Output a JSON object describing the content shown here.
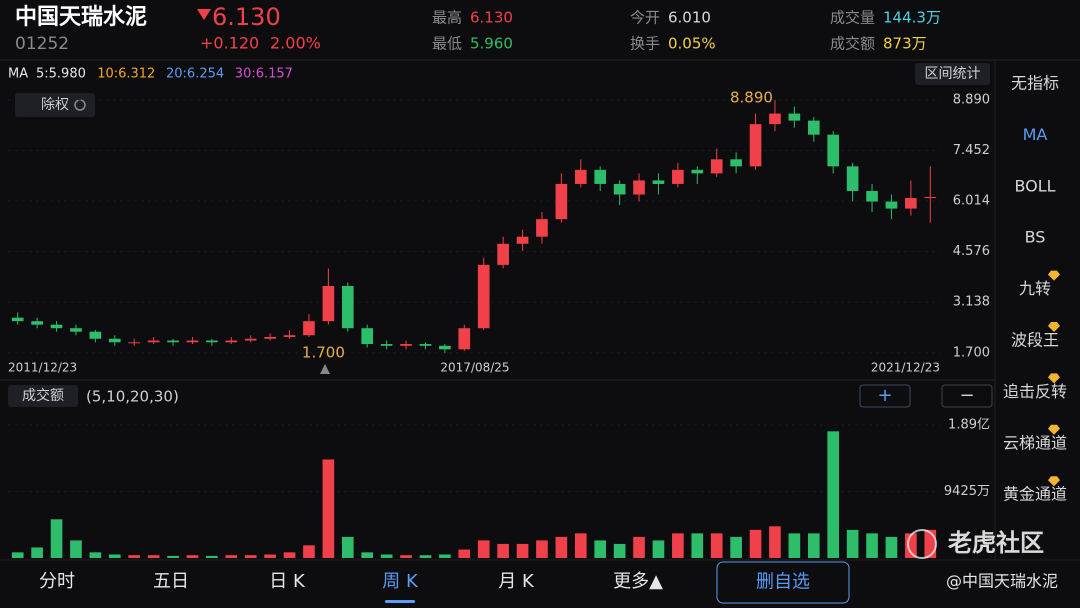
{
  "header": {
    "name": "中国天瑞水泥",
    "code": "01252",
    "price": "6.130",
    "change": "+0.120",
    "change_pct": "2.00%",
    "price_color": "#f0414a",
    "stats": [
      {
        "label": "最高",
        "value": "6.130",
        "color": "#f0414a"
      },
      {
        "label": "最低",
        "value": "5.960",
        "color": "#2ebd6b"
      },
      {
        "label": "今开",
        "value": "6.010",
        "color": "#d8d8d8"
      },
      {
        "label": "换手",
        "value": "0.05%",
        "color": "#f2d14a"
      },
      {
        "label": "成交量",
        "value": "144.3万",
        "color": "#4fd3e0"
      },
      {
        "label": "成交额",
        "value": "873万",
        "color": "#f2d14a"
      }
    ]
  },
  "ma_legend": {
    "label": "MA",
    "items": [
      {
        "text": "5:5.980",
        "color": "#e6e6e6"
      },
      {
        "text": "10:6.312",
        "color": "#f5a623"
      },
      {
        "text": "20:6.254",
        "color": "#5b9cf5"
      },
      {
        "text": "30:6.157",
        "color": "#d94fd0"
      }
    ]
  },
  "buttons": {
    "range_stats": "区间统计",
    "adjust": "除权",
    "volume_selector": "成交额",
    "volume_params": "(5,10,20,30)",
    "plus": "+",
    "minus": "−"
  },
  "chart_data": [
    {
      "type": "candlestick",
      "up_color": "#f0414a",
      "down_color": "#2ebd6b",
      "open": [
        2.7,
        2.6,
        2.5,
        2.4,
        2.3,
        2.1,
        1.98,
        2.0,
        2.05,
        2.0,
        2.05,
        2.0,
        2.05,
        2.1,
        2.15,
        2.2,
        2.6,
        3.6,
        2.4,
        1.95,
        1.9,
        1.95,
        1.9,
        1.8,
        2.4,
        4.2,
        4.8,
        5.0,
        5.5,
        6.5,
        6.9,
        6.5,
        6.2,
        6.6,
        6.5,
        6.9,
        6.8,
        7.2,
        7.0,
        8.2,
        8.5,
        8.3,
        7.9,
        7.0,
        6.3,
        6.0,
        5.8,
        6.1
      ],
      "high": [
        2.85,
        2.7,
        2.6,
        2.5,
        2.35,
        2.2,
        2.1,
        2.15,
        2.1,
        2.15,
        2.1,
        2.15,
        2.2,
        2.25,
        2.35,
        2.8,
        4.1,
        3.7,
        2.5,
        2.05,
        2.05,
        2.0,
        1.95,
        2.5,
        4.4,
        5.0,
        5.2,
        5.7,
        6.8,
        7.2,
        7.0,
        6.6,
        6.8,
        6.8,
        7.1,
        7.0,
        7.5,
        7.4,
        8.5,
        8.89,
        8.7,
        8.4,
        8.0,
        7.1,
        6.5,
        6.2,
        6.6,
        7.0
      ],
      "low": [
        2.5,
        2.4,
        2.3,
        2.2,
        2.0,
        1.9,
        1.9,
        1.95,
        1.9,
        1.95,
        1.9,
        1.95,
        2.0,
        2.05,
        2.1,
        2.15,
        2.5,
        2.3,
        1.85,
        1.8,
        1.8,
        1.8,
        1.7,
        1.75,
        2.35,
        4.1,
        4.6,
        4.8,
        5.4,
        6.4,
        6.3,
        5.9,
        6.0,
        6.2,
        6.4,
        6.5,
        6.7,
        6.8,
        6.9,
        8.0,
        8.1,
        7.7,
        6.8,
        6.0,
        5.7,
        5.5,
        5.6,
        5.4
      ],
      "close": [
        2.6,
        2.5,
        2.4,
        2.3,
        2.1,
        2.0,
        2.0,
        2.05,
        2.0,
        2.05,
        2.0,
        2.05,
        2.1,
        2.15,
        2.2,
        2.6,
        3.6,
        2.4,
        1.95,
        1.9,
        1.95,
        1.9,
        1.8,
        2.4,
        4.2,
        4.8,
        5.0,
        5.5,
        6.5,
        6.9,
        6.5,
        6.2,
        6.6,
        6.5,
        6.9,
        6.8,
        7.2,
        7.0,
        8.2,
        8.5,
        8.3,
        7.9,
        7.0,
        6.3,
        6.0,
        5.8,
        6.1,
        6.13
      ],
      "ylim": [
        1.07,
        9.17
      ],
      "yticks": [
        {
          "value": 8.89,
          "label": "8.890"
        },
        {
          "value": 7.452,
          "label": "7.452"
        },
        {
          "value": 6.014,
          "label": "6.014"
        },
        {
          "value": 4.576,
          "label": "4.576"
        },
        {
          "value": 3.138,
          "label": "3.138"
        },
        {
          "value": 1.7,
          "label": "1.700"
        }
      ],
      "x_labels": [
        "2011/12/23",
        "2017/08/25",
        "2021/12/23"
      ],
      "max_label": {
        "value": 8.89,
        "label": "8.890"
      },
      "min_label": {
        "value": 1.7,
        "label": "1.700"
      },
      "label_color": "#e8b04c"
    },
    {
      "type": "bar",
      "values": [
        800,
        1500,
        5500,
        2500,
        800,
        500,
        400,
        400,
        300,
        400,
        300,
        400,
        400,
        500,
        800,
        1800,
        14000,
        3000,
        800,
        500,
        400,
        400,
        500,
        1200,
        2500,
        2000,
        2000,
        2500,
        3000,
        3500,
        2500,
        2000,
        3000,
        2500,
        3500,
        3500,
        3500,
        3000,
        4000,
        4500,
        3500,
        3500,
        18000,
        4000,
        3500,
        3000,
        3500,
        4000
      ],
      "ylim": [
        0,
        18900
      ],
      "yticks": [
        {
          "value": 18900,
          "label": "1.89亿"
        },
        {
          "value": 9425,
          "label": "9425万"
        }
      ]
    }
  ],
  "sidebar": [
    {
      "label": "无指标",
      "active": false,
      "premium": false
    },
    {
      "label": "MA",
      "active": true,
      "premium": false
    },
    {
      "label": "BOLL",
      "active": false,
      "premium": false
    },
    {
      "label": "BS",
      "active": false,
      "premium": false
    },
    {
      "label": "九转",
      "active": false,
      "premium": true
    },
    {
      "label": "波段王",
      "active": false,
      "premium": true
    },
    {
      "label": "追击反转",
      "active": false,
      "premium": true
    },
    {
      "label": "云梯通道",
      "active": false,
      "premium": true
    },
    {
      "label": "黄金通道",
      "active": false,
      "premium": true
    }
  ],
  "tabs": [
    {
      "label": "分时",
      "selected": false
    },
    {
      "label": "五日",
      "selected": false
    },
    {
      "label": "日 K",
      "selected": false
    },
    {
      "label": "周 K",
      "selected": true
    },
    {
      "label": "月 K",
      "selected": false
    },
    {
      "label": "更多▲",
      "selected": false
    }
  ],
  "action": "删自选",
  "watermark": "老虎社区",
  "credit": "@中国天瑞水泥"
}
